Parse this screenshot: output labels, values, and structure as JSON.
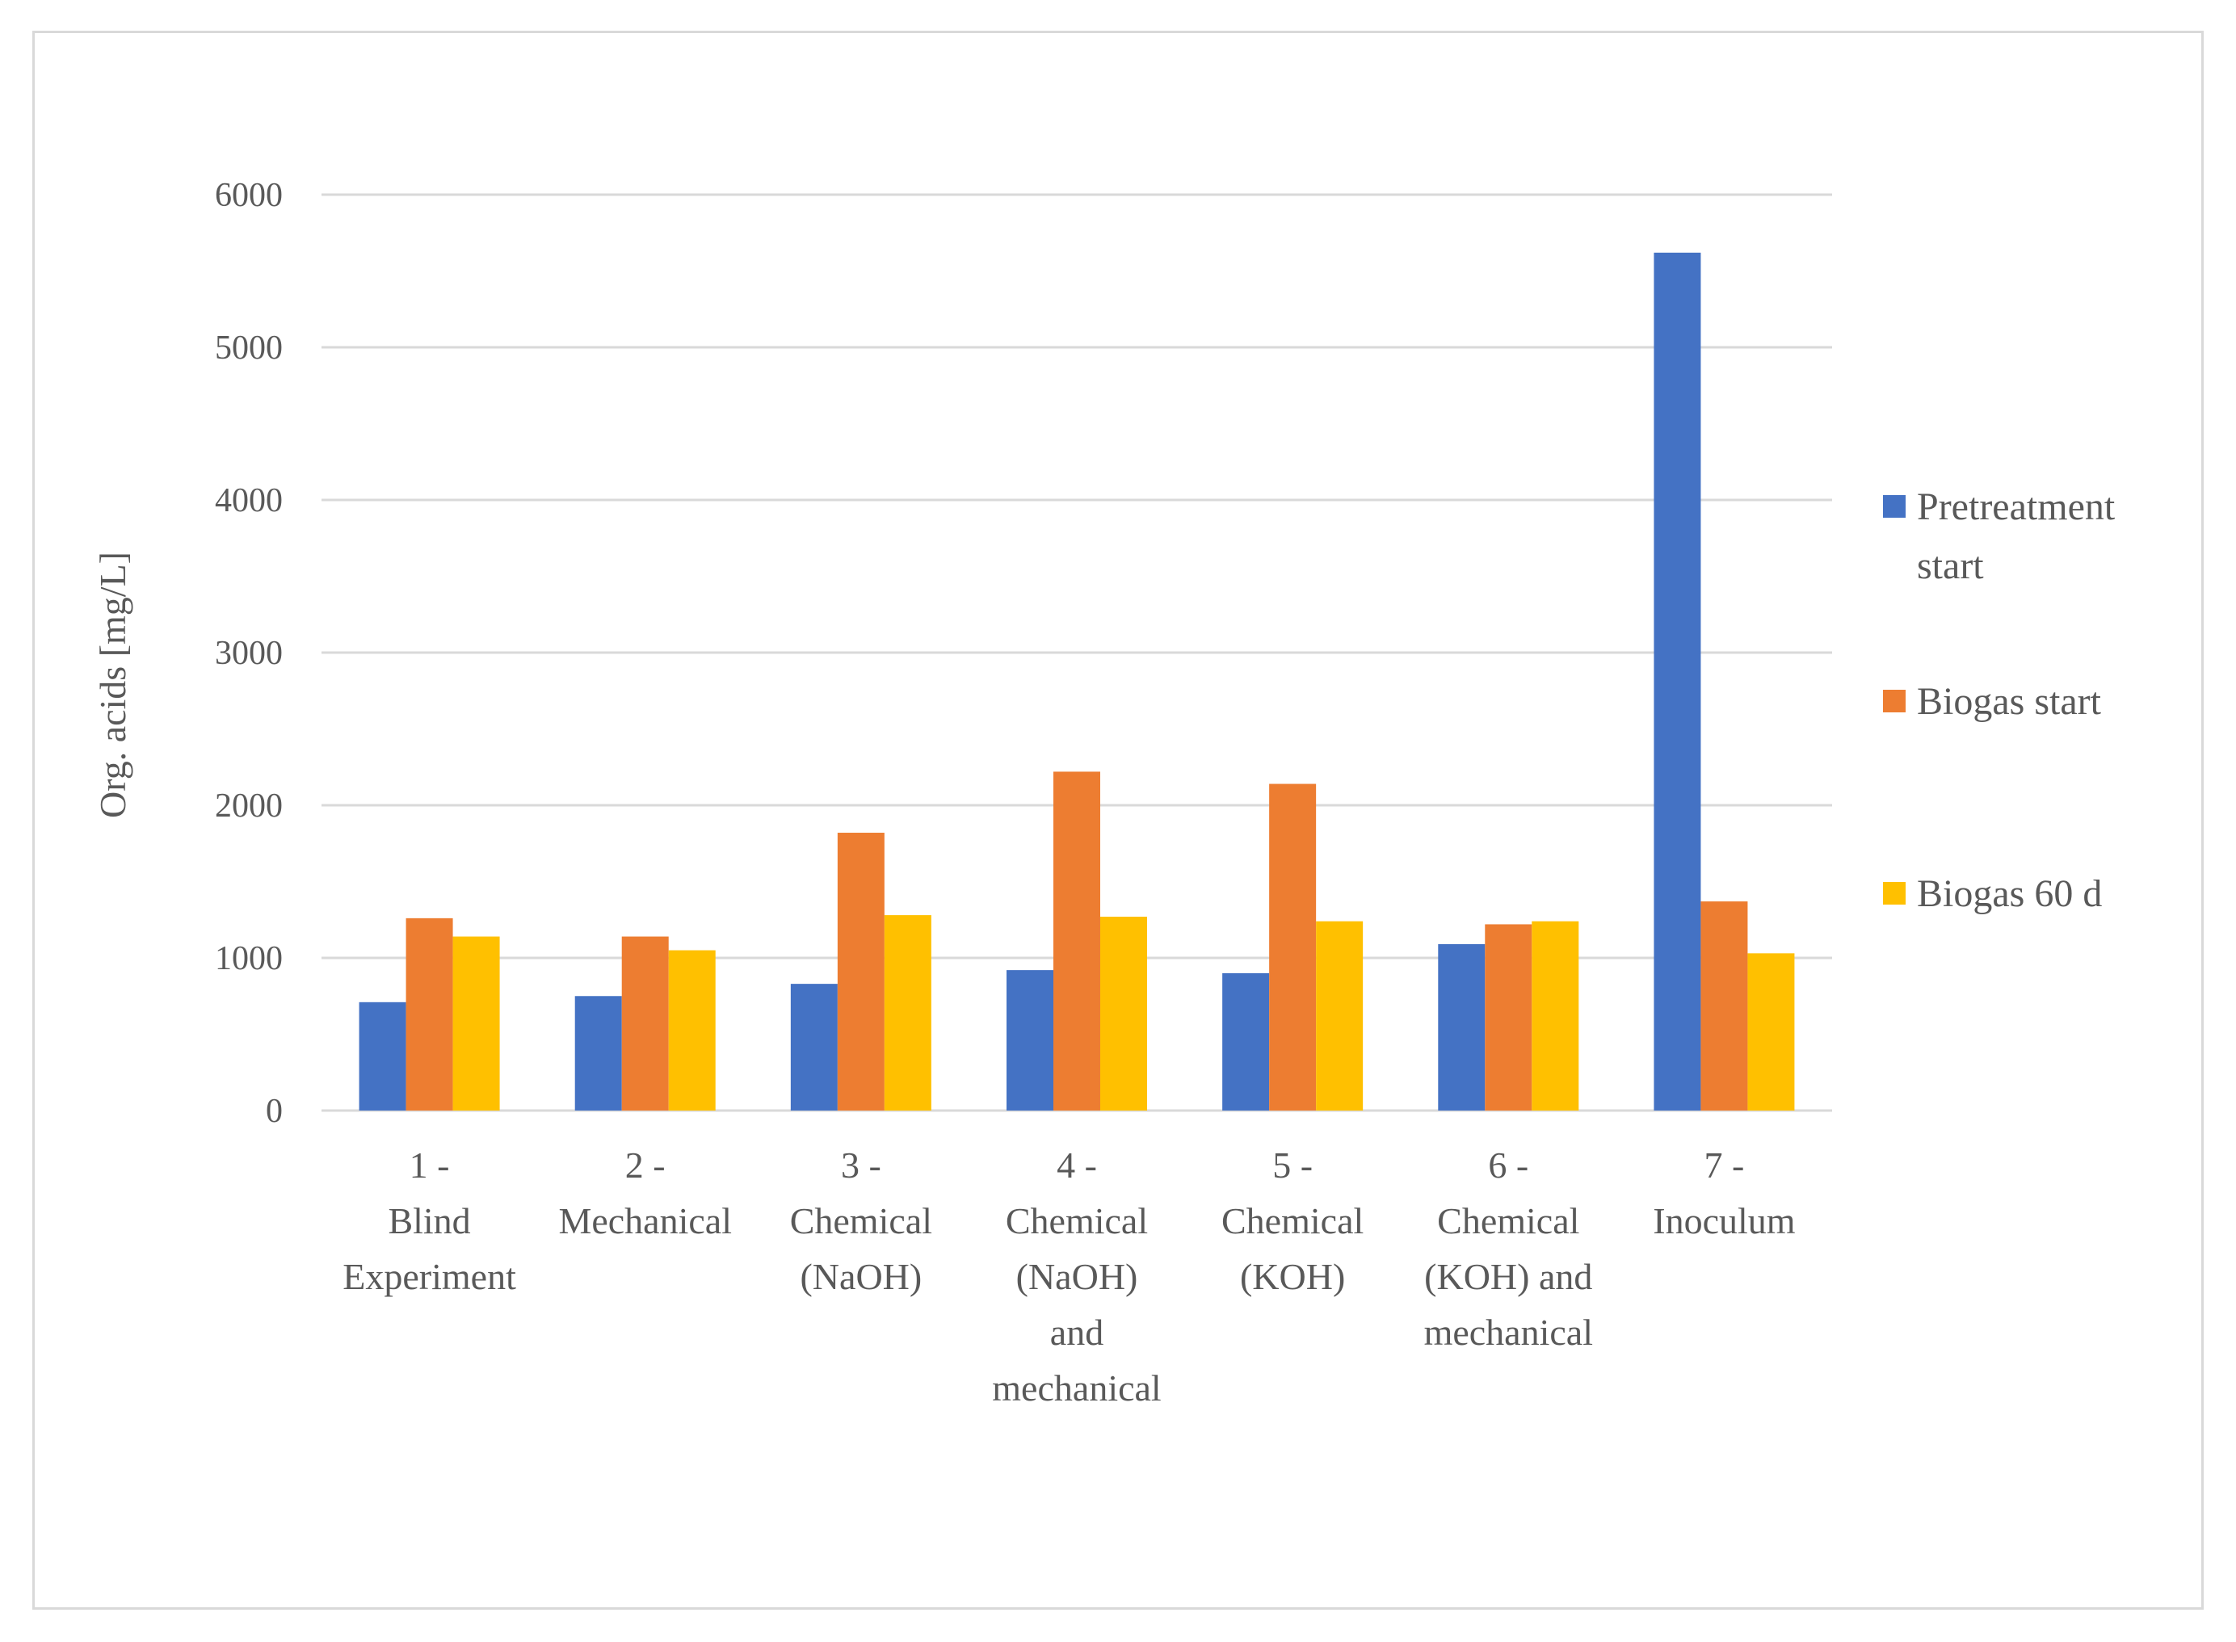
{
  "chart_data": {
    "type": "bar",
    "title": "",
    "xlabel": "",
    "ylabel": "Org. acids [mg/L]",
    "ylim": [
      0,
      6000
    ],
    "yticks": [
      0,
      1000,
      2000,
      3000,
      4000,
      5000,
      6000
    ],
    "grid": true,
    "legend_position": "right",
    "categories": [
      [
        "1 -",
        "Blind",
        "Experiment"
      ],
      [
        "2 -",
        "Mechanical"
      ],
      [
        "3 -",
        "Chemical",
        "(NaOH)"
      ],
      [
        "4 -",
        "Chemical",
        "(NaOH)",
        "and",
        "mechanical"
      ],
      [
        "5 -",
        "Chemical",
        "(KOH)"
      ],
      [
        "6 -",
        "Chemical",
        "(KOH) and",
        "mechanical"
      ],
      [
        "7 -",
        "Inoculum"
      ]
    ],
    "series": [
      {
        "name": [
          "Pretreatment",
          "start"
        ],
        "color": "#4472c4",
        "values": [
          710,
          750,
          830,
          920,
          900,
          1090,
          5620
        ]
      },
      {
        "name": [
          "Biogas start"
        ],
        "color": "#ed7d31",
        "values": [
          1260,
          1140,
          1820,
          2220,
          2140,
          1220,
          1370
        ]
      },
      {
        "name": [
          "Biogas 60 d"
        ],
        "color": "#ffc000",
        "values": [
          1140,
          1050,
          1280,
          1270,
          1240,
          1240,
          1030
        ]
      }
    ]
  }
}
